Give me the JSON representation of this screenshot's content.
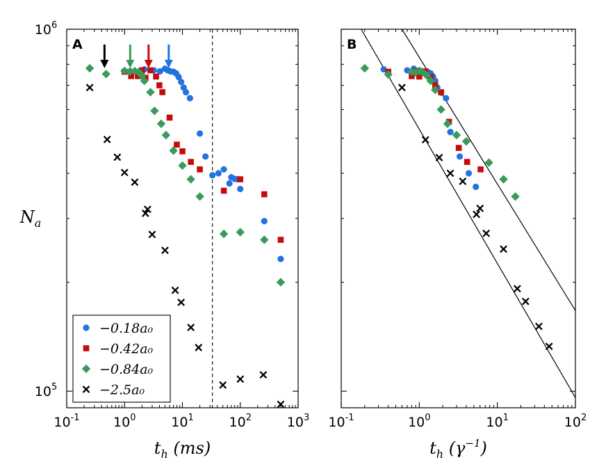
{
  "chart_data": [
    {
      "type": "scatter",
      "panel_label": "A",
      "xscale": "log",
      "yscale": "log",
      "xlim": [
        0.1,
        1000
      ],
      "ylim": [
        90000,
        1000000
      ],
      "xlabel": "t_h (ms)",
      "ylabel": "N_a",
      "x_ticks": [
        {
          "value": 0.1,
          "base": "10",
          "exp": "-1"
        },
        {
          "value": 1,
          "base": "10",
          "exp": "0"
        },
        {
          "value": 10,
          "base": "10",
          "exp": "1"
        },
        {
          "value": 100,
          "base": "10",
          "exp": "2"
        },
        {
          "value": 1000,
          "base": "10",
          "exp": "3"
        }
      ],
      "y_ticks": [
        {
          "value": 100000,
          "base": "10",
          "exp": "5"
        },
        {
          "value": 1000000,
          "base": "10",
          "exp": "6"
        }
      ],
      "vline_x": 33,
      "arrows": [
        {
          "x": 0.45,
          "color": "#000000"
        },
        {
          "x": 1.25,
          "color": "#3a9a5b"
        },
        {
          "x": 2.6,
          "color": "#c40c0c"
        },
        {
          "x": 5.8,
          "color": "#2272e0"
        }
      ],
      "series": [
        {
          "name": "−0.18a₀",
          "marker": "circle",
          "color": "#2272e0",
          "points": [
            [
              2.2,
              775000
            ],
            [
              3.2,
              770000
            ],
            [
              4.1,
              765000
            ],
            [
              5,
              778000
            ],
            [
              5.6,
              770000
            ],
            [
              6.2,
              765000
            ],
            [
              7,
              763000
            ],
            [
              7.8,
              755000
            ],
            [
              8.6,
              738000
            ],
            [
              9.5,
              715000
            ],
            [
              10.5,
              690000
            ],
            [
              11.5,
              670000
            ],
            [
              13.5,
              645000
            ],
            [
              20,
              515000
            ],
            [
              25,
              445000
            ],
            [
              33,
              395000
            ],
            [
              42,
              400000
            ],
            [
              52,
              410000
            ],
            [
              65,
              375000
            ],
            [
              70,
              390000
            ],
            [
              80,
              386000
            ],
            [
              90,
              385000
            ],
            [
              100,
              362000
            ],
            [
              260,
              295000
            ],
            [
              500,
              232000
            ]
          ]
        },
        {
          "name": "−0.42a₀",
          "marker": "square",
          "color": "#c40c0c",
          "points": [
            [
              1,
              763000
            ],
            [
              1.3,
              742000
            ],
            [
              1.7,
              742000
            ],
            [
              2,
              770000
            ],
            [
              2.3,
              735000
            ],
            [
              2.8,
              770000
            ],
            [
              3.5,
              740000
            ],
            [
              4,
              700000
            ],
            [
              4.5,
              670000
            ],
            [
              6,
              570000
            ],
            [
              8,
              480000
            ],
            [
              10,
              460000
            ],
            [
              14,
              430000
            ],
            [
              20,
              410000
            ],
            [
              52,
              358000
            ],
            [
              100,
              385000
            ],
            [
              260,
              350000
            ],
            [
              500,
              262000
            ]
          ]
        },
        {
          "name": "−0.84a₀",
          "marker": "diamond",
          "color": "#3a9a5b",
          "points": [
            [
              0.25,
              780000
            ],
            [
              0.48,
              752000
            ],
            [
              1,
              767000
            ],
            [
              1.25,
              765000
            ],
            [
              1.5,
              766000
            ],
            [
              1.75,
              762000
            ],
            [
              2,
              745000
            ],
            [
              2.2,
              720000
            ],
            [
              2.8,
              670000
            ],
            [
              3.3,
              595000
            ],
            [
              4.3,
              548000
            ],
            [
              5.2,
              510000
            ],
            [
              7,
              462000
            ],
            [
              10,
              420000
            ],
            [
              14,
              385000
            ],
            [
              20,
              345000
            ],
            [
              52,
              272000
            ],
            [
              100,
              275000
            ],
            [
              260,
              262000
            ],
            [
              500,
              200000
            ]
          ]
        },
        {
          "name": "−2.5a₀",
          "marker": "x",
          "color": "#000000",
          "points": [
            [
              0.25,
              690000
            ],
            [
              0.5,
              496000
            ],
            [
              0.75,
              443000
            ],
            [
              1,
              402000
            ],
            [
              1.5,
              378000
            ],
            [
              2.3,
              310000
            ],
            [
              2.5,
              318000
            ],
            [
              3,
              271000
            ],
            [
              5,
              245000
            ],
            [
              7.5,
              190000
            ],
            [
              9.5,
              176000
            ],
            [
              14,
              150000
            ],
            [
              19,
              132000
            ],
            [
              50,
              104000
            ],
            [
              100,
              108000
            ],
            [
              250,
              111000
            ],
            [
              500,
              92000
            ]
          ]
        }
      ],
      "legend": {
        "position": "lower-left",
        "entries": [
          "−0.18a₀",
          "−0.42a₀",
          "−0.84a₀",
          "−2.5a₀"
        ]
      }
    },
    {
      "type": "scatter",
      "panel_label": "B",
      "xscale": "log",
      "yscale": "log",
      "xlim": [
        0.1,
        100
      ],
      "ylim": [
        90000,
        1000000
      ],
      "xlabel": "t_h (γ⁻¹)",
      "ylabel": "",
      "x_ticks": [
        {
          "value": 0.1,
          "base": "10",
          "exp": "-1"
        },
        {
          "value": 1,
          "base": "10",
          "exp": "0"
        },
        {
          "value": 10,
          "base": "10",
          "exp": "1"
        },
        {
          "value": 100,
          "base": "10",
          "exp": "2"
        }
      ],
      "fit_lines": [
        {
          "x1": 0.18,
          "y1": 1000000,
          "x2": 100,
          "y2": 96000
        },
        {
          "x1": 0.6,
          "y1": 1000000,
          "x2": 100,
          "y2": 167000
        }
      ],
      "series": [
        {
          "name": "−0.18a₀",
          "marker": "circle",
          "color": "#2272e0",
          "points": [
            [
              0.35,
              775000
            ],
            [
              0.7,
              770000
            ],
            [
              0.85,
              778000
            ],
            [
              1,
              770000
            ],
            [
              1.2,
              765000
            ],
            [
              1.3,
              760000
            ],
            [
              1.4,
              755000
            ],
            [
              1.5,
              740000
            ],
            [
              1.6,
              720000
            ],
            [
              1.7,
              690000
            ],
            [
              1.9,
              668000
            ],
            [
              2.2,
              645000
            ],
            [
              2.5,
              520000
            ],
            [
              3.3,
              445000
            ],
            [
              4.3,
              400000
            ],
            [
              5.3,
              367000
            ]
          ]
        },
        {
          "name": "−0.42a₀",
          "marker": "square",
          "color": "#c40c0c",
          "points": [
            [
              0.4,
              763000
            ],
            [
              0.8,
              742000
            ],
            [
              0.9,
              766000
            ],
            [
              1,
              740000
            ],
            [
              1.2,
              765000
            ],
            [
              1.4,
              738000
            ],
            [
              1.6,
              700000
            ],
            [
              1.9,
              670000
            ],
            [
              2.4,
              555000
            ],
            [
              3.2,
              470000
            ],
            [
              4.1,
              430000
            ],
            [
              6.1,
              410000
            ]
          ]
        },
        {
          "name": "−0.84a₀",
          "marker": "diamond",
          "color": "#3a9a5b",
          "points": [
            [
              0.2,
              780000
            ],
            [
              0.4,
              750000
            ],
            [
              0.8,
              763000
            ],
            [
              0.9,
              760000
            ],
            [
              1,
              766000
            ],
            [
              1.1,
              762000
            ],
            [
              1.25,
              745000
            ],
            [
              1.4,
              720000
            ],
            [
              1.6,
              680000
            ],
            [
              1.9,
              600000
            ],
            [
              2.3,
              548000
            ],
            [
              3,
              510000
            ],
            [
              4,
              490000
            ],
            [
              7.8,
              428000
            ],
            [
              12,
              385000
            ],
            [
              17,
              345000
            ]
          ]
        },
        {
          "name": "−2.5a₀",
          "marker": "x",
          "color": "#000000",
          "points": [
            [
              0.6,
              690000
            ],
            [
              1.2,
              495000
            ],
            [
              1.8,
              442000
            ],
            [
              2.5,
              400000
            ],
            [
              3.6,
              380000
            ],
            [
              5.4,
              308000
            ],
            [
              6,
              320000
            ],
            [
              7.2,
              273000
            ],
            [
              12,
              247000
            ],
            [
              18,
              192000
            ],
            [
              23,
              177000
            ],
            [
              34,
              151000
            ],
            [
              46,
              133000
            ]
          ]
        }
      ]
    }
  ]
}
